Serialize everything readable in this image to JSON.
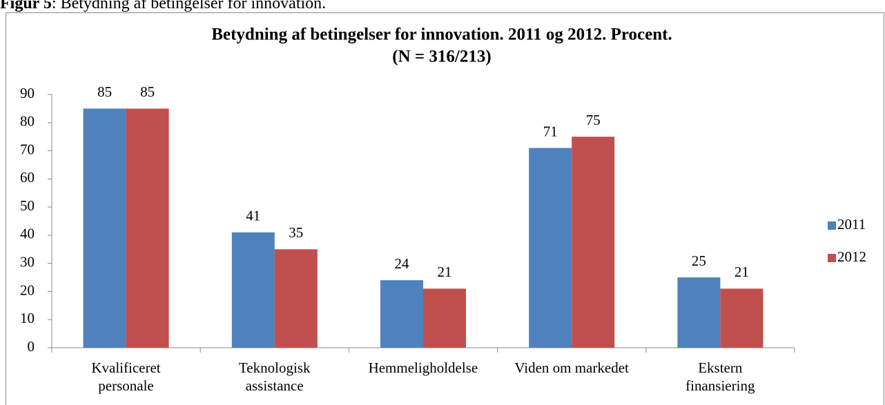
{
  "caption": {
    "label": "Figur 5",
    "text": ": Betydning af betingelser for innovation."
  },
  "chart_data": {
    "type": "bar",
    "title": "Betydning af betingelser for innovation. 2011 og 2012. Procent.",
    "subtitle": "(N = 316/213)",
    "categories": [
      "Kvalificeret\npersonale",
      "Teknologisk\nassistance",
      "Hemmeligholdelse",
      "Viden om markedet",
      "Ekstern\nfinansiering"
    ],
    "series": [
      {
        "name": "2011",
        "color": "#4f81bd",
        "values": [
          85,
          41,
          24,
          71,
          25
        ]
      },
      {
        "name": "2012",
        "color": "#c0504d",
        "values": [
          85,
          35,
          21,
          75,
          21
        ]
      }
    ],
    "ylim": [
      0,
      90
    ],
    "yticks": [
      0,
      10,
      20,
      30,
      40,
      50,
      60,
      70,
      80,
      90
    ],
    "grid": false,
    "legend": "right"
  }
}
